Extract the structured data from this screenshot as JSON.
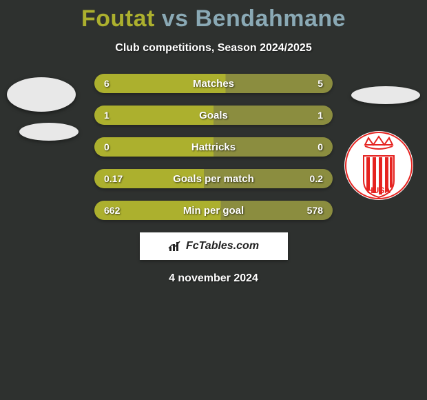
{
  "background_color": "#2e312f",
  "title": {
    "player1": "Foutat",
    "vs": "vs",
    "player2": "Bendahmane",
    "color1": "#acb02e",
    "color_vs": "#8aa9b5",
    "color2": "#8aa9b5",
    "fontsize": 34
  },
  "subtitle": "Club competitions, Season 2024/2025",
  "bar_colors": {
    "left": "#acb02e",
    "right": "#8b8d3f"
  },
  "bars": [
    {
      "label": "Matches",
      "left": "6",
      "right": "5",
      "left_pct": 55,
      "right_pct": 45
    },
    {
      "label": "Goals",
      "left": "1",
      "right": "1",
      "left_pct": 50,
      "right_pct": 50
    },
    {
      "label": "Hattricks",
      "left": "0",
      "right": "0",
      "left_pct": 50,
      "right_pct": 50
    },
    {
      "label": "Goals per match",
      "left": "0.17",
      "right": "0.2",
      "left_pct": 46,
      "right_pct": 54
    },
    {
      "label": "Min per goal",
      "left": "662",
      "right": "578",
      "left_pct": 53,
      "right_pct": 47
    }
  ],
  "fctables_label": "FcTables.com",
  "date": "4 november 2024",
  "badge": {
    "circle_bg": "#ffffff",
    "stripe_color": "#e52320",
    "top_text": "HUSA",
    "top_text_color": "#e52320"
  }
}
